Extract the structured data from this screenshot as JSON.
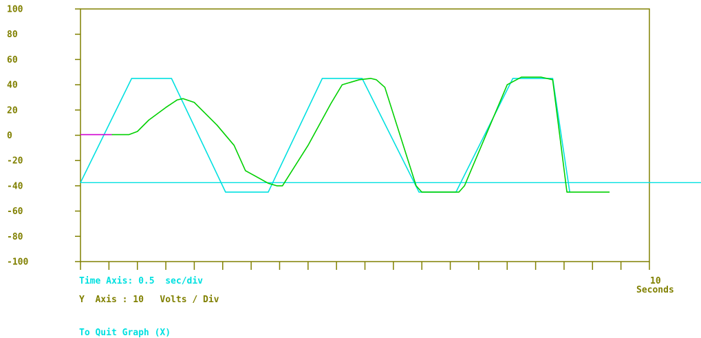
{
  "colors": {
    "axis": "#808000",
    "text_olive": "#808000",
    "text_cyan": "#00e0e0",
    "series_setpoint": "#00e0e0",
    "series_response": "#00d000",
    "series_initial": "#d000d0",
    "reference_line": "#00e0e0"
  },
  "footer": {
    "time_axis": "Time Axis: 0.5  sec/div",
    "y_axis": "Y  Axis : 10   Volts / Div",
    "quit": "To Quit Graph (X)",
    "x_end_value": "10",
    "x_end_unit": "Seconds"
  },
  "chart_data": {
    "type": "line",
    "title": "",
    "xlabel": "Seconds",
    "ylabel": "",
    "xlim": [
      0,
      10
    ],
    "ylim": [
      -100,
      100
    ],
    "x_divisions": 20,
    "y_ticks": [
      100,
      80,
      60,
      40,
      20,
      0,
      -20,
      -40,
      -60,
      -80,
      -100
    ],
    "y_tick_labels": [
      "100",
      "80",
      "60",
      "40",
      "20",
      "0",
      "-20",
      "-40",
      "-60",
      "-80",
      "-100"
    ],
    "reference_line": {
      "y": -37.5
    },
    "series": [
      {
        "key": "setpoint",
        "x": [
          0,
          0.9,
          1.6,
          2.55,
          3.3,
          4.25,
          4.95,
          5.95,
          6.6,
          7.6,
          8.3,
          8.6
        ],
        "values": [
          -37.5,
          45,
          45,
          -45,
          -45,
          45,
          45,
          -45,
          -45,
          45,
          45,
          -45
        ]
      },
      {
        "key": "response",
        "x": [
          0.55,
          0.7,
          0.85,
          1.0,
          1.2,
          1.5,
          1.7,
          1.8,
          2.0,
          2.4,
          2.7,
          2.9,
          3.3,
          3.45,
          3.55,
          4.0,
          4.4,
          4.6,
          4.9,
          5.1,
          5.2,
          5.35,
          5.9,
          6.0,
          6.65,
          6.75,
          7.5,
          7.75,
          8.1,
          8.3,
          8.55,
          9.3
        ],
        "values": [
          0.5,
          0.5,
          0.5,
          3,
          12,
          22,
          28,
          29,
          26,
          8,
          -8,
          -28,
          -38,
          -40,
          -40,
          -8,
          25,
          40,
          44,
          45,
          44,
          38,
          -40,
          -45,
          -45,
          -40,
          40,
          46,
          46,
          44,
          -45,
          -45
        ]
      },
      {
        "key": "initial",
        "x": [
          0,
          0.55
        ],
        "values": [
          0.5,
          0.5
        ]
      }
    ]
  }
}
